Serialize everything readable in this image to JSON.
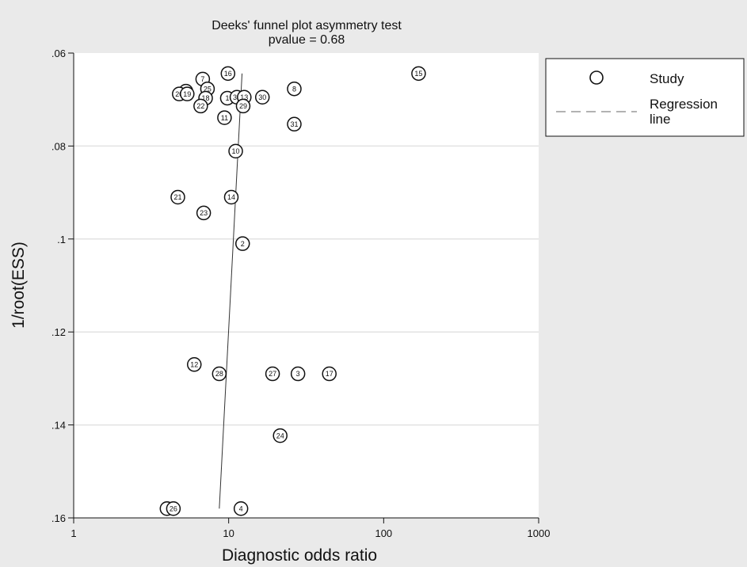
{
  "chart_data": {
    "type": "scatter",
    "title": "Deeks' funnel plot asymmetry test",
    "subtitle": "pvalue  =   0.68",
    "xlabel": "Diagnostic odds ratio",
    "ylabel": "1/root(ESS)",
    "x_scale": "log",
    "xlim": [
      1,
      1000
    ],
    "ylim": [
      0.06,
      0.16
    ],
    "y_reversed": true,
    "x_ticks": [
      "1",
      "10",
      "100",
      "1000"
    ],
    "y_ticks": [
      ".06",
      ".08",
      ".1",
      ".12",
      ".14",
      ".16"
    ],
    "grid": "horizontal",
    "legend": {
      "placement": "right",
      "items": [
        {
          "marker": "circle",
          "label": "Study"
        },
        {
          "marker": "dashed-line",
          "label": "Regression\nline"
        }
      ]
    },
    "series": [
      {
        "name": "Study",
        "points": [
          {
            "label": "16",
            "x": 9.9,
            "y": 0.0644
          },
          {
            "label": "15",
            "x": 168,
            "y": 0.0644
          },
          {
            "label": "7",
            "x": 6.8,
            "y": 0.0656
          },
          {
            "label": "25",
            "x": 7.3,
            "y": 0.0677
          },
          {
            "label": "8",
            "x": 26.5,
            "y": 0.0677
          },
          {
            "label": "5",
            "x": 5.3,
            "y": 0.0682
          },
          {
            "label": "20",
            "x": 4.8,
            "y": 0.0688
          },
          {
            "label": "19",
            "x": 5.4,
            "y": 0.0688
          },
          {
            "label": "18",
            "x": 7.1,
            "y": 0.0697
          },
          {
            "label": "1",
            "x": 9.8,
            "y": 0.0697
          },
          {
            "label": "30",
            "x": 11.3,
            "y": 0.0695
          },
          {
            "label": "13",
            "x": 12.6,
            "y": 0.0695
          },
          {
            "label": "30",
            "x": 16.5,
            "y": 0.0695
          },
          {
            "label": "22",
            "x": 6.6,
            "y": 0.0714
          },
          {
            "label": "29",
            "x": 12.4,
            "y": 0.0714
          },
          {
            "label": "11",
            "x": 9.4,
            "y": 0.0739
          },
          {
            "label": "31",
            "x": 26.5,
            "y": 0.0753
          },
          {
            "label": "10",
            "x": 11.1,
            "y": 0.0811
          },
          {
            "label": "21",
            "x": 4.7,
            "y": 0.091
          },
          {
            "label": "14",
            "x": 10.4,
            "y": 0.091
          },
          {
            "label": "23",
            "x": 6.9,
            "y": 0.0944
          },
          {
            "label": "2",
            "x": 12.3,
            "y": 0.101
          },
          {
            "label": "12",
            "x": 6.0,
            "y": 0.127
          },
          {
            "label": "28",
            "x": 8.7,
            "y": 0.129
          },
          {
            "label": "27",
            "x": 19.2,
            "y": 0.129
          },
          {
            "label": "3",
            "x": 28.0,
            "y": 0.129
          },
          {
            "label": "17",
            "x": 44.6,
            "y": 0.129
          },
          {
            "label": "24",
            "x": 21.5,
            "y": 0.1423
          },
          {
            "label": "",
            "x": 4.0,
            "y": 0.158
          },
          {
            "label": "26",
            "x": 4.4,
            "y": 0.158
          },
          {
            "label": "4",
            "x": 12.0,
            "y": 0.158
          }
        ]
      },
      {
        "name": "Regression line",
        "type": "line",
        "points": [
          {
            "x": 8.7,
            "y": 0.158
          },
          {
            "x": 12.2,
            "y": 0.0644
          }
        ]
      }
    ]
  }
}
